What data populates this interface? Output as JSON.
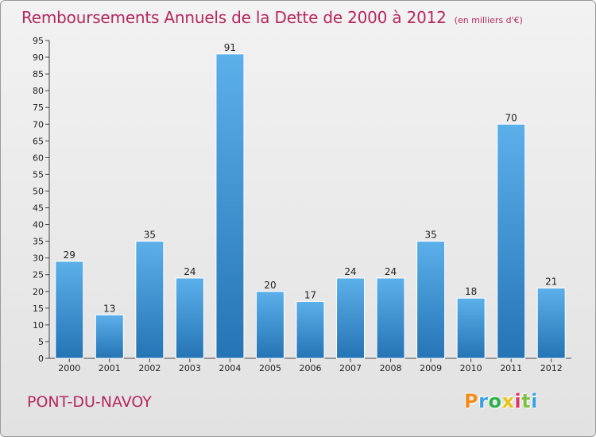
{
  "header": {
    "title": "Remboursements Annuels de la Dette de 2000 à 2012",
    "subtitle": "(en milliers d'€)"
  },
  "footer": {
    "commune": "PONT-DU-NAVOY",
    "brand": "Proxiti",
    "brand_colors": [
      "#f08c1c",
      "#3aa0e0",
      "#2bb24c",
      "#e8c21a",
      "#d9336a",
      "#7bc142",
      "#3aa0e0"
    ]
  },
  "colors": {
    "title": "#b5285f",
    "bar_top": "#5cb0ea",
    "bar_bottom": "#2574b5"
  },
  "chart_data": {
    "type": "bar",
    "categories": [
      "2000",
      "2001",
      "2002",
      "2003",
      "2004",
      "2005",
      "2006",
      "2007",
      "2008",
      "2009",
      "2010",
      "2011",
      "2012"
    ],
    "values": [
      29,
      13,
      35,
      24,
      91,
      20,
      17,
      24,
      24,
      35,
      18,
      70,
      21
    ],
    "ylim": [
      0,
      95
    ],
    "yticks": [
      0,
      5,
      10,
      15,
      20,
      25,
      30,
      35,
      40,
      45,
      50,
      55,
      60,
      65,
      70,
      75,
      80,
      85,
      90,
      95
    ],
    "grid": false,
    "data_labels": true
  }
}
